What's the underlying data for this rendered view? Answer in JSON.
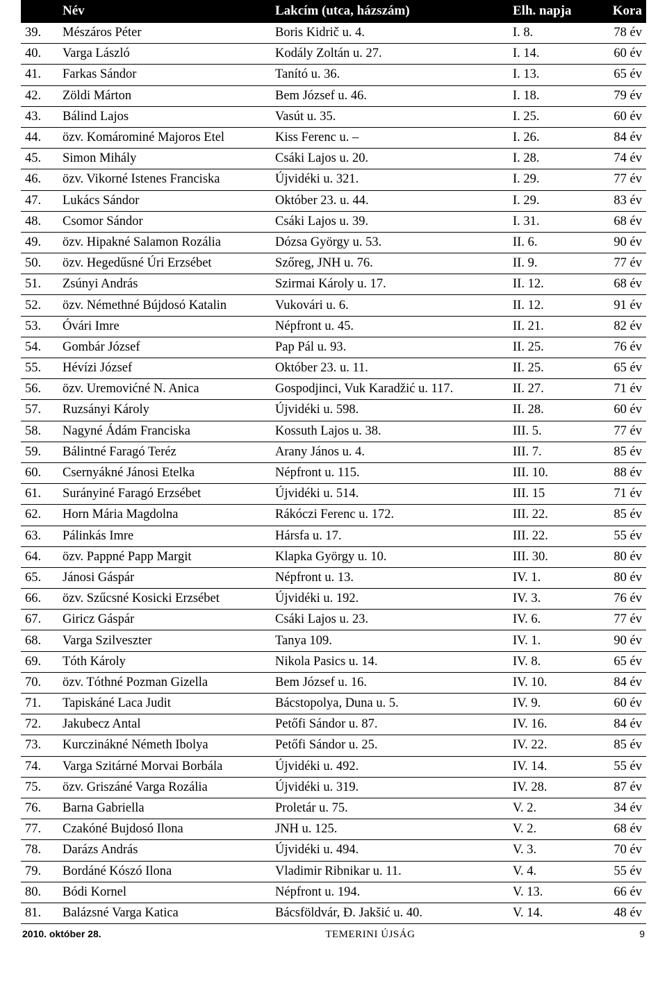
{
  "table": {
    "header": {
      "num": "",
      "name": "Név",
      "addr": "Lakcím (utca, házszám)",
      "date": "Elh. napja",
      "age": "Kora"
    },
    "rows": [
      {
        "num": "39.",
        "name": "Mészáros Péter",
        "addr": "Boris Kidrič u. 4.",
        "date": "I. 8.",
        "age": "78 év"
      },
      {
        "num": "40.",
        "name": "Varga László",
        "addr": "Kodály Zoltán u. 27.",
        "date": "I. 14.",
        "age": "60 év"
      },
      {
        "num": "41.",
        "name": "Farkas Sándor",
        "addr": "Tanító u. 36.",
        "date": "I. 13.",
        "age": "65 év"
      },
      {
        "num": "42.",
        "name": "Zöldi Márton",
        "addr": "Bem József u. 46.",
        "date": "I. 18.",
        "age": "79 év"
      },
      {
        "num": "43.",
        "name": "Bálind Lajos",
        "addr": "Vasút u. 35.",
        "date": "I. 25.",
        "age": "60 év"
      },
      {
        "num": "44.",
        "name": "özv. Komárominé Majoros Etel",
        "addr": "Kiss Ferenc u. –",
        "date": "I. 26.",
        "age": "84 év"
      },
      {
        "num": "45.",
        "name": "Simon Mihály",
        "addr": "Csáki Lajos u. 20.",
        "date": "I. 28.",
        "age": "74 év"
      },
      {
        "num": "46.",
        "name": "özv. Vikorné Istenes Franciska",
        "addr": "Újvidéki u. 321.",
        "date": "I. 29.",
        "age": "77 év"
      },
      {
        "num": "47.",
        "name": "Lukács Sándor",
        "addr": "Október 23. u. 44.",
        "date": "I. 29.",
        "age": "83 év"
      },
      {
        "num": "48.",
        "name": "Csomor Sándor",
        "addr": "Csáki Lajos u. 39.",
        "date": "I. 31.",
        "age": "68 év"
      },
      {
        "num": "49.",
        "name": "özv. Hipakné Salamon Rozália",
        "addr": "Dózsa György u. 53.",
        "date": "II. 6.",
        "age": "90 év"
      },
      {
        "num": "50.",
        "name": "özv. Hegedűsné Úri Erzsébet",
        "addr": "Szőreg, JNH u. 76.",
        "date": "II. 9.",
        "age": "77 év"
      },
      {
        "num": "51.",
        "name": "Zsúnyi András",
        "addr": "Szirmai Károly u. 17.",
        "date": "II. 12.",
        "age": "68 év"
      },
      {
        "num": "52.",
        "name": "özv. Némethné Bújdosó Katalin",
        "addr": "Vukovári u. 6.",
        "date": "II. 12.",
        "age": "91 év"
      },
      {
        "num": "53.",
        "name": "Óvári Imre",
        "addr": "Népfront u. 45.",
        "date": "II. 21.",
        "age": "82 év"
      },
      {
        "num": "54.",
        "name": "Gombár József",
        "addr": "Pap Pál u. 93.",
        "date": "II. 25.",
        "age": "76 év"
      },
      {
        "num": "55.",
        "name": "Hévízi József",
        "addr": "Október 23. u. 11.",
        "date": "II. 25.",
        "age": "65 év"
      },
      {
        "num": "56.",
        "name": "özv. Uremovićné N. Anica",
        "addr": "Gospodjinci, Vuk Karadžić u. 117.",
        "date": "II. 27.",
        "age": "71 év"
      },
      {
        "num": "57.",
        "name": "Ruzsányi Károly",
        "addr": "Újvidéki u. 598.",
        "date": "II. 28.",
        "age": "60 év"
      },
      {
        "num": "58.",
        "name": "Nagyné Ádám Franciska",
        "addr": "Kossuth Lajos u. 38.",
        "date": "III. 5.",
        "age": "77 év"
      },
      {
        "num": "59.",
        "name": "Bálintné Faragó Teréz",
        "addr": "Arany János u. 4.",
        "date": "III. 7.",
        "age": "85 év"
      },
      {
        "num": "60.",
        "name": "Csernyákné Jánosi Etelka",
        "addr": "Népfront u. 115.",
        "date": "III. 10.",
        "age": "88 év"
      },
      {
        "num": "61.",
        "name": "Surányiné Faragó Erzsébet",
        "addr": "Újvidéki u. 514.",
        "date": "III. 15",
        "age": "71 év"
      },
      {
        "num": "62.",
        "name": "Horn Mária Magdolna",
        "addr": "Rákóczi Ferenc u. 172.",
        "date": "III. 22.",
        "age": "85 év"
      },
      {
        "num": "63.",
        "name": "Pálinkás Imre",
        "addr": "Hársfa u. 17.",
        "date": "III. 22.",
        "age": "55 év"
      },
      {
        "num": "64.",
        "name": "özv. Pappné Papp Margit",
        "addr": "Klapka György u. 10.",
        "date": "III. 30.",
        "age": "80 év"
      },
      {
        "num": "65.",
        "name": "Jánosi Gáspár",
        "addr": "Népfront u. 13.",
        "date": "IV. 1.",
        "age": "80 év"
      },
      {
        "num": "66.",
        "name": "özv. Szűcsné Kosicki Erzsébet",
        "addr": "Újvidéki u. 192.",
        "date": "IV. 3.",
        "age": "76 év"
      },
      {
        "num": "67.",
        "name": "Giricz Gáspár",
        "addr": "Csáki Lajos u. 23.",
        "date": "IV. 6.",
        "age": "77 év"
      },
      {
        "num": "68.",
        "name": "Varga Szilveszter",
        "addr": "Tanya 109.",
        "date": "IV. 1.",
        "age": "90 év"
      },
      {
        "num": "69.",
        "name": "Tóth Károly",
        "addr": "Nikola Pasics u. 14.",
        "date": "IV. 8.",
        "age": "65 év"
      },
      {
        "num": "70.",
        "name": "özv. Tóthné Pozman Gizella",
        "addr": "Bem József u. 16.",
        "date": "IV. 10.",
        "age": "84 év"
      },
      {
        "num": "71.",
        "name": "Tapiskáné Laca Judit",
        "addr": "Bácstopolya, Duna u. 5.",
        "date": "IV. 9.",
        "age": "60 év"
      },
      {
        "num": "72.",
        "name": "Jakubecz Antal",
        "addr": "Petőfi Sándor u. 87.",
        "date": "IV. 16.",
        "age": "84 év"
      },
      {
        "num": "73.",
        "name": "Kurczinákné Németh Ibolya",
        "addr": "Petőfi Sándor u. 25.",
        "date": "IV. 22.",
        "age": "85 év"
      },
      {
        "num": "74.",
        "name": "Varga Szitárné Morvai Borbála",
        "addr": "Újvidéki u. 492.",
        "date": "IV. 14.",
        "age": "55 év"
      },
      {
        "num": "75.",
        "name": "özv. Griszáné Varga Rozália",
        "addr": "Újvidéki u. 319.",
        "date": "IV. 28.",
        "age": "87 év"
      },
      {
        "num": "76.",
        "name": "Barna Gabriella",
        "addr": "Proletár u. 75.",
        "date": "V. 2.",
        "age": "34 év"
      },
      {
        "num": "77.",
        "name": "Czakóné Bujdosó Ilona",
        "addr": "JNH u. 125.",
        "date": "V. 2.",
        "age": "68 év"
      },
      {
        "num": "78.",
        "name": "Darázs András",
        "addr": "Újvidéki u. 494.",
        "date": "V. 3.",
        "age": "70 év"
      },
      {
        "num": "79.",
        "name": "Bordáné Kószó Ilona",
        "addr": "Vladimir Ribnikar u. 11.",
        "date": "V. 4.",
        "age": "55 év"
      },
      {
        "num": "80.",
        "name": "Bódi Kornel",
        "addr": "Népfront u. 194.",
        "date": "V. 13.",
        "age": "66 év"
      },
      {
        "num": "81.",
        "name": "Balázsné Varga Katica",
        "addr": "Bácsföldvár, Đ. Jakšić u. 40.",
        "date": "V. 14.",
        "age": "48 év"
      }
    ]
  },
  "footer": {
    "date": "2010. október 28.",
    "publication": "TEMERINI ÚJSÁG",
    "page": "9"
  },
  "style": {
    "header_bg": "#000000",
    "header_fg": "#ffffff",
    "row_border": "#000000",
    "page_bg": "#ffffff",
    "text_color": "#000000"
  }
}
